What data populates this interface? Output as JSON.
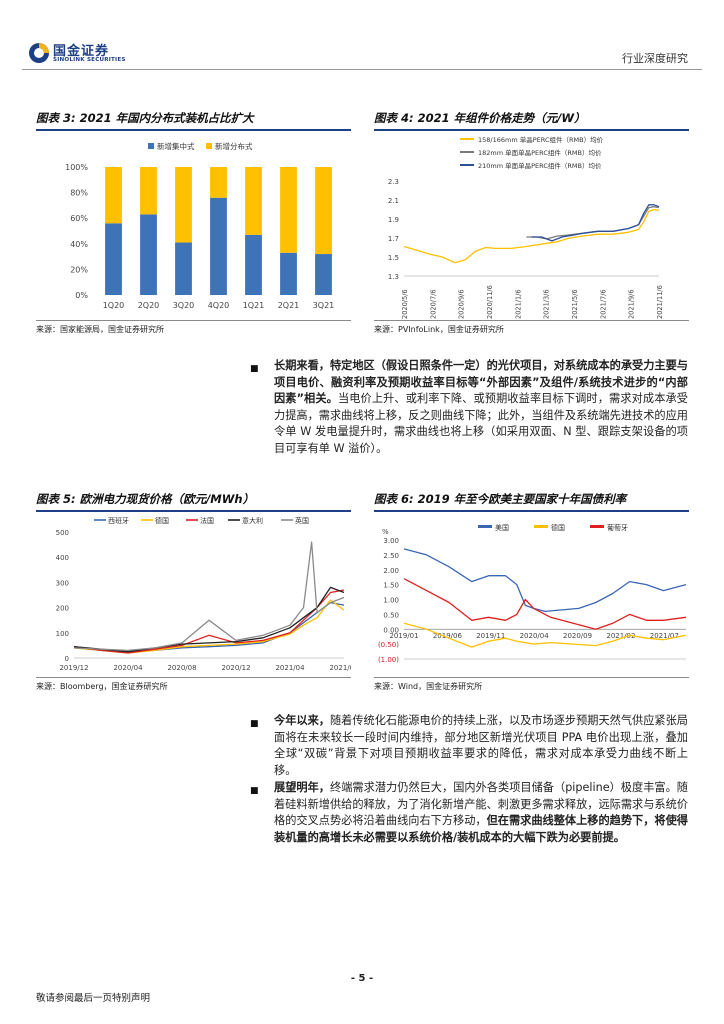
{
  "header": {
    "logo_cn": "国金证券",
    "logo_en": "SINOLINK SECURITIES",
    "right_label": "行业深度研究"
  },
  "fig3": {
    "title": "图表 3:  2021 年国内分布式装机占比扩大",
    "source": "来源：国家能源局，国金证券研究所",
    "legend": [
      "新增集中式",
      "新增分布式"
    ],
    "colors": {
      "central": "#3f73b8",
      "distributed": "#ffc000"
    },
    "chart_data": {
      "type": "bar",
      "stacked": true,
      "categories": [
        "1Q20",
        "2Q20",
        "3Q20",
        "4Q20",
        "1Q21",
        "2Q21",
        "3Q21"
      ],
      "series": [
        {
          "name": "新增集中式",
          "values": [
            56,
            63,
            41,
            76,
            47,
            33,
            32
          ]
        },
        {
          "name": "新增分布式",
          "values": [
            44,
            37,
            59,
            24,
            53,
            67,
            68
          ]
        }
      ],
      "yticks": [
        "0%",
        "20%",
        "40%",
        "60%",
        "80%",
        "100%"
      ],
      "ylim": [
        0,
        100
      ]
    }
  },
  "fig4": {
    "title": "图表 4:  2021 年组件价格走势（元/W）",
    "source": "来源：PVInfoLink，国金证券研究所",
    "legend": [
      "158/166mm 单晶PERC组件（RMB）均价",
      "182mm 单面单晶PERC组件（RMB）均价",
      "210mm 单面单晶PERC组件（RMB）均价"
    ],
    "colors": [
      "#ffc000",
      "#7a7a7a",
      "#2f4f9a"
    ],
    "chart_data": {
      "type": "line",
      "yticks": [
        "1.3",
        "1.5",
        "1.7",
        "1.9",
        "2.1",
        "2.3"
      ],
      "ylim": [
        1.3,
        2.3
      ],
      "xticks": [
        "2020/5/6",
        "2020/7/6",
        "2020/9/6",
        "2020/11/6",
        "2021/1/6",
        "2021/3/6",
        "2021/5/6",
        "2021/7/6",
        "2021/9/6",
        "2021/11/6"
      ],
      "series": [
        {
          "name": "158/166mm 单晶PERC组件（RMB）均价",
          "x": [
            0,
            0.05,
            0.1,
            0.15,
            0.2,
            0.24,
            0.28,
            0.32,
            0.36,
            0.42,
            0.48,
            0.55,
            0.6,
            0.65,
            0.7,
            0.76,
            0.82,
            0.88,
            0.92,
            0.94,
            0.96,
            0.98,
            1.0
          ],
          "values": [
            1.61,
            1.57,
            1.53,
            1.5,
            1.44,
            1.47,
            1.56,
            1.6,
            1.59,
            1.59,
            1.61,
            1.64,
            1.66,
            1.7,
            1.72,
            1.74,
            1.74,
            1.76,
            1.79,
            1.87,
            1.98,
            2.0,
            1.99
          ]
        },
        {
          "name": "182mm 单面单晶PERC组件（RMB）均价",
          "x": [
            0.48,
            0.52,
            0.56,
            0.6,
            0.64,
            0.7,
            0.76,
            0.82,
            0.88,
            0.92,
            0.94,
            0.96,
            0.98,
            1.0
          ],
          "values": [
            1.71,
            1.71,
            1.69,
            1.72,
            1.73,
            1.75,
            1.77,
            1.77,
            1.8,
            1.84,
            1.93,
            2.02,
            2.03,
            2.02
          ]
        },
        {
          "name": "210mm 单面单晶PERC组件（RMB）均价",
          "x": [
            0.5,
            0.54,
            0.58,
            0.62,
            0.66,
            0.7,
            0.76,
            0.82,
            0.88,
            0.92,
            0.94,
            0.96,
            0.98,
            1.0
          ],
          "values": [
            1.71,
            1.71,
            1.67,
            1.71,
            1.73,
            1.75,
            1.77,
            1.77,
            1.8,
            1.84,
            1.96,
            2.05,
            2.05,
            2.03
          ]
        }
      ]
    }
  },
  "para1": {
    "lead": "长期来看，特定地区（假设日照条件一定）的光伏项目，对系统成本的承受力主要与项目电价、融资利率及预期收益率目标等“外部因素”及组件/系统技术进步的“内部因素”相关。",
    "body": "当电价上升、或利率下降、或预期收益率目标下调时，需求对成本承受力提高，需求曲线将上移，反之则曲线下降；此外，当组件及系统端先进技术的应用令单 W 发电量提升时，需求曲线也将上移（如采用双面、N 型、跟踪支架设备的项目可享有单 W 溢价）。"
  },
  "fig5": {
    "title": "图表 5:  欧洲电力现货价格（欧元/MWh）",
    "source": "来源：Bloomberg，国金证券研究所",
    "legend": [
      "西班牙",
      "德国",
      "法国",
      "意大利",
      "英国"
    ],
    "colors": [
      "#3a66b4",
      "#ffc000",
      "#e02020",
      "#222222",
      "#8a8a8a"
    ],
    "chart_data": {
      "type": "line",
      "yticks": [
        "0",
        "100",
        "200",
        "300",
        "400",
        "500"
      ],
      "ylim": [
        0,
        500
      ],
      "xticks": [
        "2019/12",
        "2020/04",
        "2020/08",
        "2020/12",
        "2021/04",
        "2021/08"
      ],
      "series": [
        {
          "name": "西班牙",
          "x": [
            0,
            0.1,
            0.2,
            0.3,
            0.4,
            0.5,
            0.6,
            0.7,
            0.75,
            0.8,
            0.85,
            0.9,
            0.95,
            1.0
          ],
          "values": [
            40,
            30,
            25,
            30,
            40,
            45,
            50,
            60,
            80,
            100,
            140,
            180,
            220,
            210
          ]
        },
        {
          "name": "德国",
          "x": [
            0,
            0.1,
            0.2,
            0.3,
            0.4,
            0.5,
            0.6,
            0.7,
            0.75,
            0.8,
            0.85,
            0.9,
            0.95,
            1.0
          ],
          "values": [
            40,
            30,
            20,
            30,
            45,
            50,
            55,
            65,
            80,
            95,
            130,
            160,
            230,
            190
          ]
        },
        {
          "name": "法国",
          "x": [
            0,
            0.1,
            0.2,
            0.3,
            0.4,
            0.5,
            0.6,
            0.7,
            0.75,
            0.8,
            0.85,
            0.9,
            0.95,
            1.0
          ],
          "values": [
            45,
            30,
            20,
            35,
            50,
            90,
            60,
            70,
            85,
            100,
            150,
            200,
            260,
            270
          ]
        },
        {
          "name": "意大利",
          "x": [
            0,
            0.1,
            0.2,
            0.3,
            0.4,
            0.5,
            0.6,
            0.7,
            0.75,
            0.8,
            0.85,
            0.9,
            0.95,
            1.0
          ],
          "values": [
            45,
            35,
            25,
            40,
            55,
            60,
            65,
            80,
            100,
            120,
            160,
            200,
            280,
            260
          ]
        },
        {
          "name": "英国",
          "x": [
            0,
            0.1,
            0.2,
            0.3,
            0.4,
            0.5,
            0.6,
            0.7,
            0.75,
            0.8,
            0.85,
            0.88,
            0.9,
            0.95,
            1.0
          ],
          "values": [
            40,
            35,
            30,
            40,
            60,
            150,
            70,
            90,
            110,
            130,
            200,
            460,
            180,
            220,
            240
          ]
        }
      ]
    }
  },
  "fig6": {
    "title": "图表 6:  2019 年至今欧美主要国家十年国债利率",
    "source": "来源：Wind，国金证券研究所",
    "legend": [
      "美国",
      "德国",
      "葡萄牙"
    ],
    "colors": [
      "#3a66b4",
      "#ffc000",
      "#e02020"
    ],
    "chart_data": {
      "type": "line",
      "yunit": "%",
      "yticks": [
        "(1.00)",
        "(0.50)",
        "0.00",
        "0.50",
        "1.00",
        "1.50",
        "2.00",
        "2.50",
        "3.00"
      ],
      "ylim": [
        -1.0,
        3.0
      ],
      "xticks": [
        "2019/01",
        "2019/06",
        "2019/11",
        "2020/04",
        "2020/09",
        "2021/02",
        "2021/07"
      ],
      "series": [
        {
          "name": "美国",
          "x": [
            0,
            0.08,
            0.16,
            0.24,
            0.3,
            0.36,
            0.4,
            0.43,
            0.46,
            0.5,
            0.56,
            0.62,
            0.68,
            0.74,
            0.8,
            0.86,
            0.92,
            1.0
          ],
          "values": [
            2.7,
            2.5,
            2.1,
            1.6,
            1.8,
            1.8,
            1.5,
            0.8,
            0.7,
            0.6,
            0.65,
            0.7,
            0.9,
            1.2,
            1.6,
            1.5,
            1.3,
            1.5
          ]
        },
        {
          "name": "德国",
          "x": [
            0,
            0.08,
            0.16,
            0.24,
            0.3,
            0.36,
            0.4,
            0.46,
            0.52,
            0.6,
            0.68,
            0.74,
            0.8,
            0.86,
            0.92,
            1.0
          ],
          "values": [
            0.2,
            0.0,
            -0.3,
            -0.6,
            -0.4,
            -0.3,
            -0.4,
            -0.5,
            -0.45,
            -0.5,
            -0.55,
            -0.4,
            -0.2,
            -0.3,
            -0.35,
            -0.2
          ]
        },
        {
          "name": "葡萄牙",
          "x": [
            0,
            0.08,
            0.16,
            0.24,
            0.3,
            0.36,
            0.4,
            0.43,
            0.46,
            0.52,
            0.6,
            0.68,
            0.74,
            0.8,
            0.86,
            0.92,
            1.0
          ],
          "values": [
            1.7,
            1.3,
            0.9,
            0.3,
            0.4,
            0.3,
            0.5,
            1.0,
            0.7,
            0.4,
            0.2,
            0.0,
            0.2,
            0.5,
            0.3,
            0.3,
            0.4
          ]
        }
      ]
    }
  },
  "para2": {
    "lead": "今年以来，",
    "body": "随着传统化石能源电价的持续上涨，以及市场逐步预期天然气供应紧张局面将在未来较长一段时间内维持，部分地区新增光伏项目 PPA 电价出现上涨，叠加全球“双碳”背景下对项目预期收益率要求的降低，需求对成本承受力曲线不断上移。"
  },
  "para3": {
    "lead": "展望明年，",
    "body": "终端需求潜力仍然巨大，国内外各类项目储备（pipeline）极度丰富。随着硅料新增供给的释放，为了消化新增产能、刺激更多需求释放，远际需求与系统价格的交叉点势必将沿着曲线向右下方移动，",
    "tail": "但在需求曲线整体上移的趋势下，将使得装机量的高增长未必需要以系统价格/装机成本的大幅下跌为必要前提。"
  },
  "footer": {
    "page": "- 5 -",
    "note": "敬请参阅最后一页特别声明"
  }
}
